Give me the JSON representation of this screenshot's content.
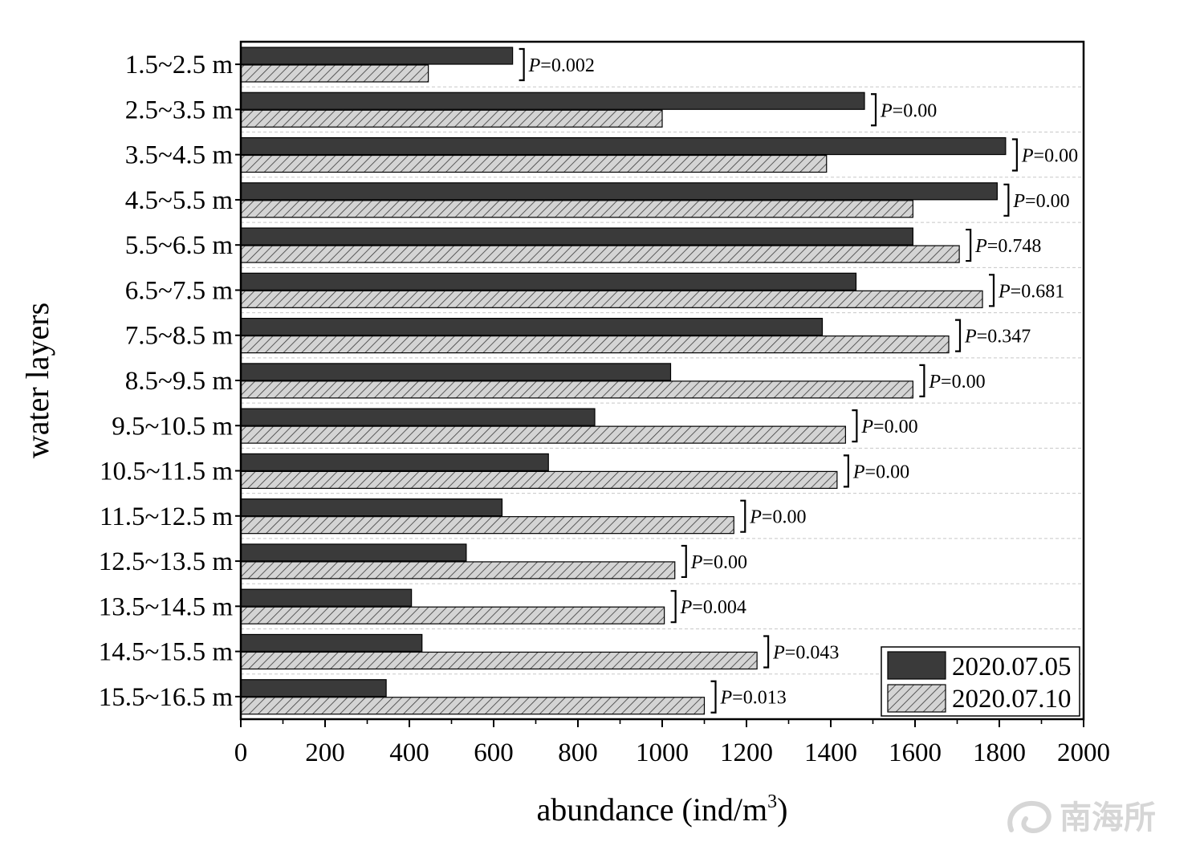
{
  "chart_data": {
    "type": "bar",
    "orientation": "horizontal",
    "categories": [
      "1.5~2.5 m",
      "2.5~3.5 m",
      "3.5~4.5 m",
      "4.5~5.5 m",
      "5.5~6.5 m",
      "6.5~7.5 m",
      "7.5~8.5 m",
      "8.5~9.5 m",
      "9.5~10.5 m",
      "10.5~11.5 m",
      "11.5~12.5 m",
      "12.5~13.5 m",
      "13.5~14.5 m",
      "14.5~15.5 m",
      "15.5~16.5 m"
    ],
    "series": [
      {
        "name": "2020.07.05",
        "color": "#3a3a3a",
        "pattern": "solid",
        "values": [
          645,
          1480,
          1815,
          1795,
          1595,
          1460,
          1380,
          1020,
          840,
          730,
          620,
          535,
          405,
          430,
          345
        ]
      },
      {
        "name": "2020.07.10",
        "color": "#cfcfcf",
        "pattern": "hatched",
        "values": [
          445,
          1000,
          1390,
          1595,
          1705,
          1760,
          1680,
          1595,
          1435,
          1415,
          1170,
          1030,
          1005,
          1225,
          1100
        ]
      }
    ],
    "p_prefix": "P",
    "p_values": [
      "=0.002",
      "=0.00",
      "=0.00",
      "=0.00",
      "=0.748",
      "=0.681",
      "=0.347",
      "=0.00",
      "=0.00",
      "=0.00",
      "=0.00",
      "=0.00",
      "=0.004",
      "=0.043",
      "=0.013"
    ],
    "xlabel": "abundance (ind/m",
    "xlabel_sup": "3",
    "xlabel_end": ")",
    "ylabel": "water layers",
    "xlim": [
      0,
      2000
    ],
    "xticks": [
      0,
      200,
      400,
      600,
      800,
      1000,
      1200,
      1400,
      1600,
      1800,
      2000
    ],
    "grid": "horizontal dashed",
    "legend_position": "bottom-right"
  },
  "watermark": "南海所"
}
